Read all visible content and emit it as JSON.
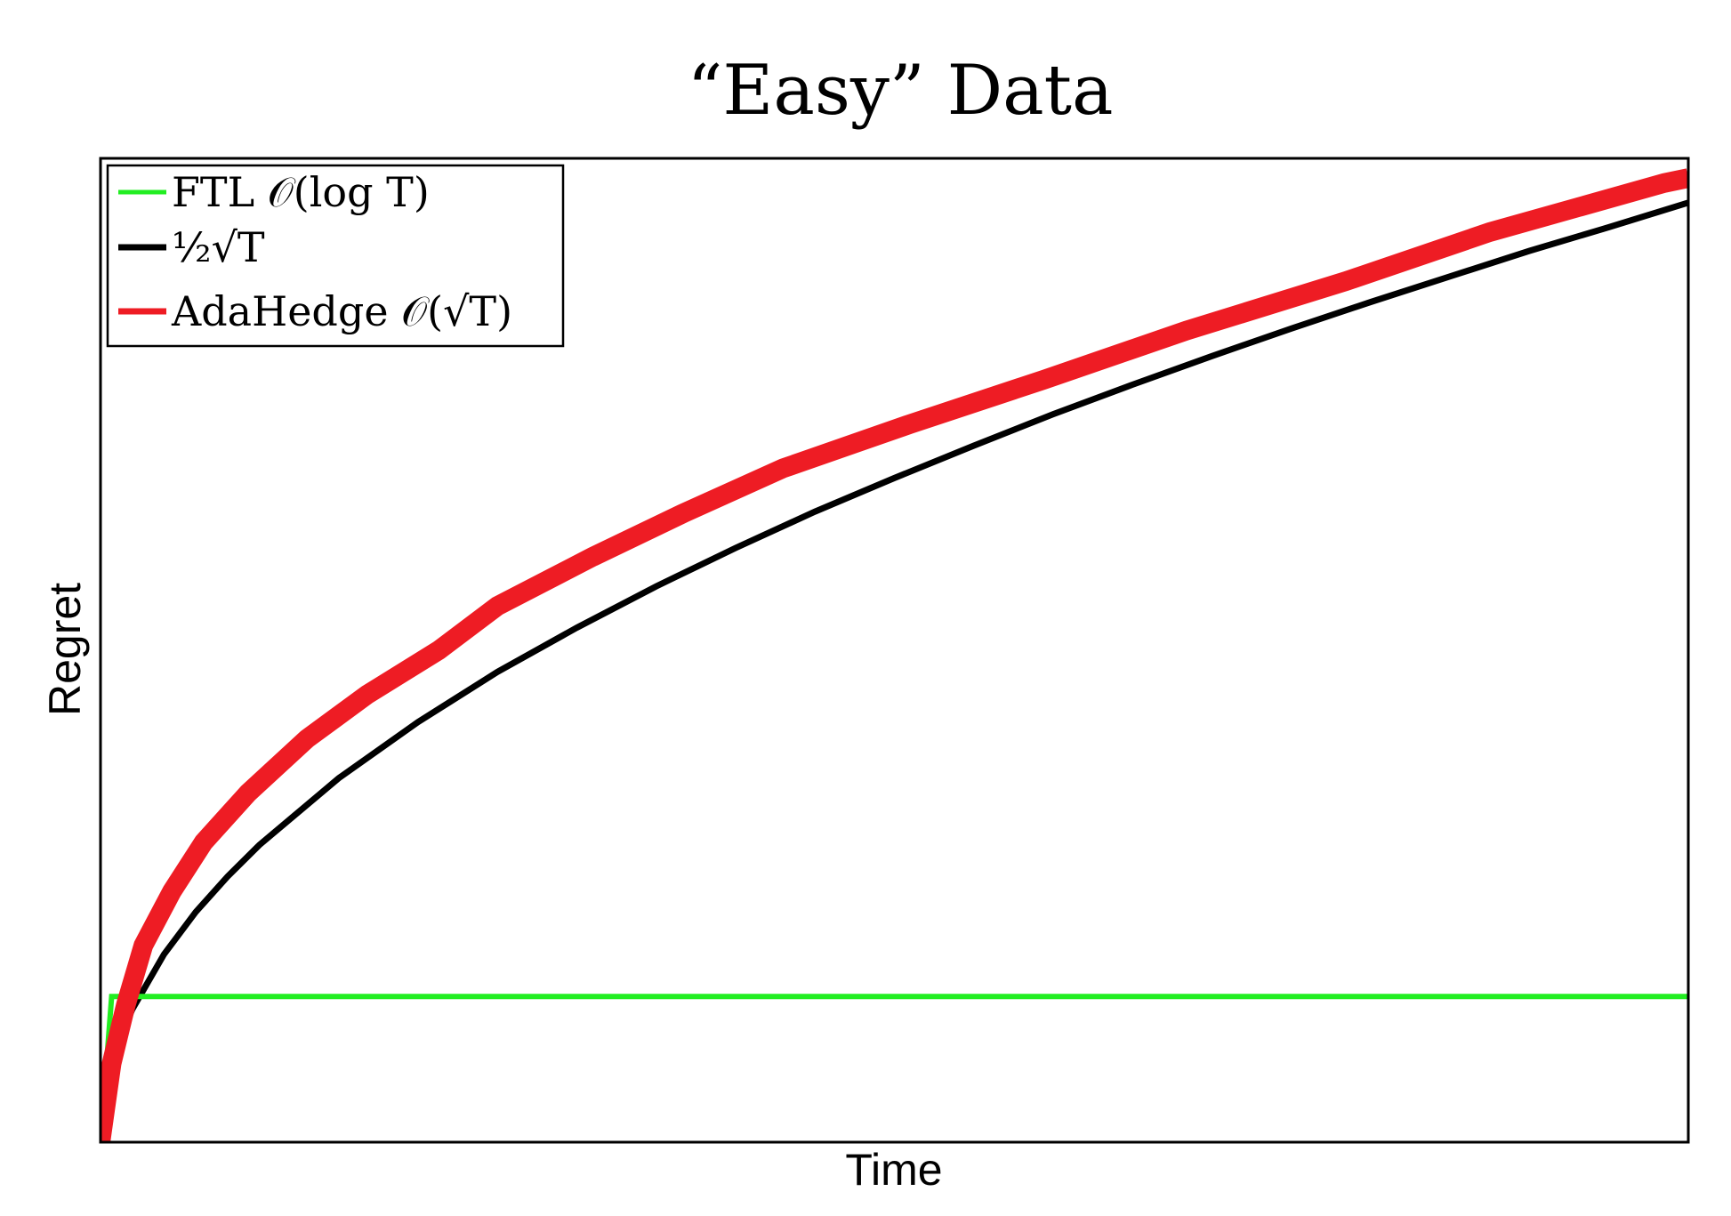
{
  "chart_data": {
    "type": "line",
    "title": "“Easy” Data",
    "xlabel": "Time",
    "ylabel": "Regret",
    "xlim": [
      0,
      1
    ],
    "ylim": [
      0,
      1
    ],
    "ticks_visible": false,
    "grid": false,
    "legend_position": "top-left",
    "series": [
      {
        "name": "FTL 𝒪(log T)",
        "color": "#22ee22",
        "style": "thin-step",
        "x": [
          0,
          0.007,
          0.008,
          1.0
        ],
        "y": [
          0,
          0.148,
          0.148,
          0.148
        ]
      },
      {
        "name": "½√T",
        "color": "#000000",
        "style": "medium",
        "x": [
          0,
          0.001,
          0.003,
          0.006,
          0.01,
          0.02,
          0.04,
          0.06,
          0.08,
          0.1,
          0.15,
          0.2,
          0.25,
          0.3,
          0.35,
          0.4,
          0.45,
          0.5,
          0.55,
          0.6,
          0.65,
          0.7,
          0.75,
          0.8,
          0.85,
          0.9,
          0.95,
          1.0
        ],
        "y": [
          0.0,
          0.03,
          0.052,
          0.074,
          0.096,
          0.135,
          0.191,
          0.234,
          0.27,
          0.302,
          0.37,
          0.427,
          0.478,
          0.523,
          0.565,
          0.604,
          0.641,
          0.675,
          0.708,
          0.74,
          0.77,
          0.799,
          0.827,
          0.854,
          0.88,
          0.906,
          0.93,
          0.955
        ]
      },
      {
        "name": "AdaHedge 𝒪(√T)",
        "color": "#ee1c24",
        "style": "thick-staircase",
        "x": [
          0,
          0.007,
          0.016,
          0.027,
          0.045,
          0.065,
          0.093,
          0.13,
          0.168,
          0.213,
          0.25,
          0.31,
          0.368,
          0.43,
          0.51,
          0.594,
          0.684,
          0.784,
          0.875,
          0.985,
          1.0
        ],
        "y": [
          0.0,
          0.08,
          0.14,
          0.2,
          0.255,
          0.305,
          0.355,
          0.41,
          0.455,
          0.5,
          0.545,
          0.595,
          0.64,
          0.685,
          0.73,
          0.775,
          0.825,
          0.875,
          0.925,
          0.975,
          0.98
        ]
      }
    ]
  }
}
